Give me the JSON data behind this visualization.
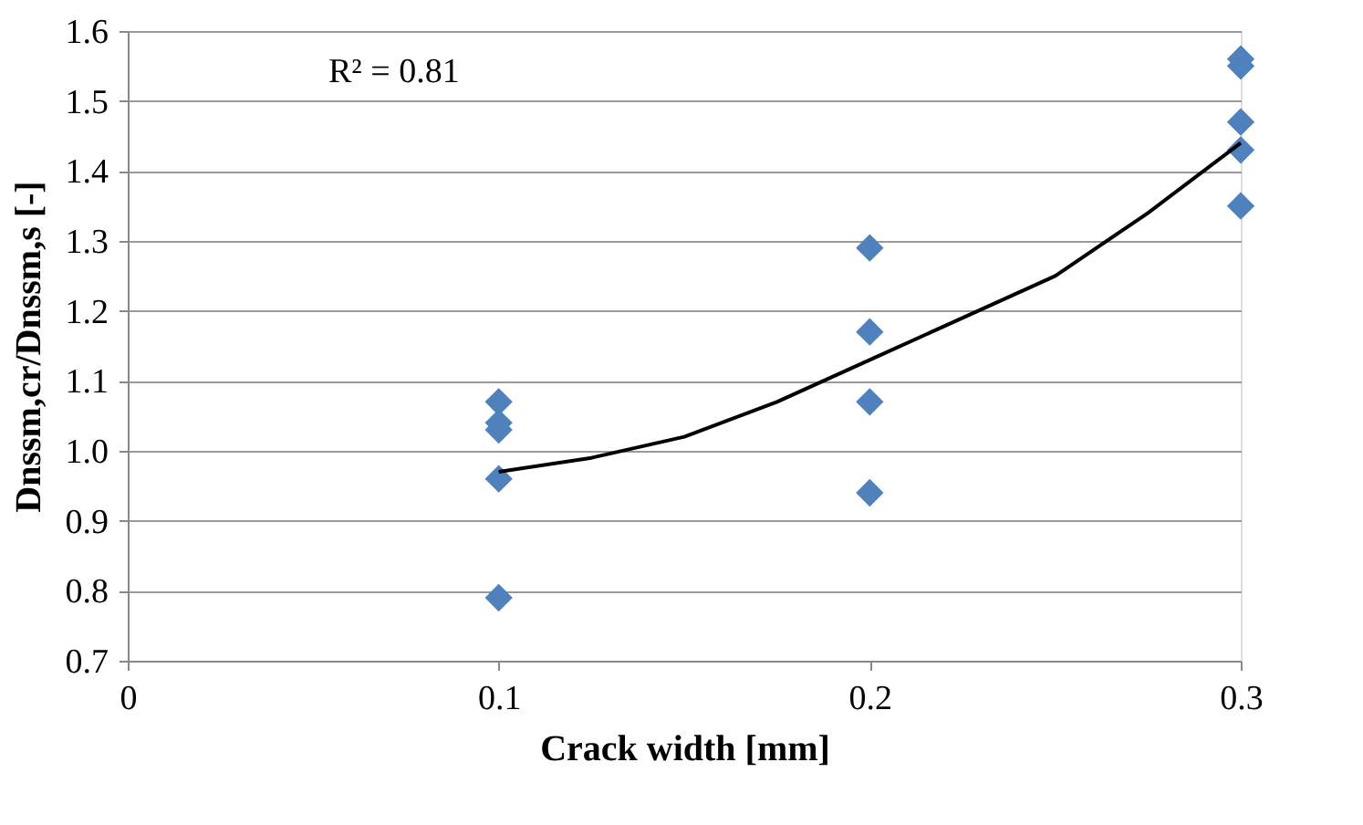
{
  "chart_data": {
    "type": "scatter",
    "xlabel": "Crack width  [mm]",
    "ylabel": "Dnssm,cr/Dnssm,s  [-]",
    "xlim": [
      0,
      0.3
    ],
    "xticks": [
      0,
      0.1,
      0.2,
      0.3
    ],
    "ylim": [
      0.7,
      1.6
    ],
    "yticks": [
      {
        "value": 0.7,
        "label": "0.7"
      },
      {
        "value": 0.8,
        "label": "0.8"
      },
      {
        "value": 0.9,
        "label": "0.9"
      },
      {
        "value": 1.0,
        "label": "1.0"
      },
      {
        "value": 1.1,
        "label": "1.1"
      },
      {
        "value": 1.2,
        "label": "1.2"
      },
      {
        "value": 1.3,
        "label": "1.3"
      },
      {
        "value": 1.4,
        "label": "1.4"
      },
      {
        "value": 1.5,
        "label": "1.5"
      },
      {
        "value": 1.6,
        "label": "1.6"
      }
    ],
    "grid": "y",
    "annotations": [
      "R² = 0.81"
    ],
    "series": [
      {
        "type": "scatter",
        "color": "#4f81bd",
        "marker": "diamond",
        "x": [
          0.1,
          0.1,
          0.1,
          0.1,
          0.1,
          0.2,
          0.2,
          0.2,
          0.2,
          0.3,
          0.3,
          0.3,
          0.3,
          0.3
        ],
        "values": [
          1.07,
          1.04,
          1.03,
          0.96,
          0.79,
          1.29,
          1.17,
          1.07,
          0.94,
          1.56,
          1.55,
          1.47,
          1.43,
          1.35
        ]
      },
      {
        "type": "line",
        "color": "#000000",
        "marker": "none",
        "line_style": "solid",
        "x": [
          0.1,
          0.125,
          0.15,
          0.175,
          0.2,
          0.225,
          0.25,
          0.275,
          0.3
        ],
        "values": [
          0.97,
          0.99,
          1.02,
          1.07,
          1.13,
          1.19,
          1.25,
          1.34,
          1.44
        ]
      }
    ]
  }
}
